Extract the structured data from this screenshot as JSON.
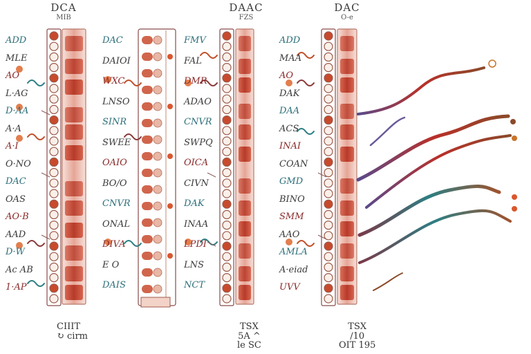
{
  "headers": [
    {
      "title": "DCA",
      "sub": "MIB"
    },
    {
      "title": "DAAC",
      "sub": "FZS"
    },
    {
      "title": "DAC",
      "sub": "O-e"
    }
  ],
  "panel1_labels": [
    "ADD",
    "MLE",
    "AO",
    "L·AG",
    "D·AA",
    "A·A",
    "A·I",
    "O·NO",
    "DAC",
    "OAS",
    "AO·B",
    "AAD",
    "D·W",
    "Ac AB",
    "1·AP"
  ],
  "panel2_labels": [
    "DAC",
    "DAIOI",
    "WXC",
    "LNSO",
    "SINR",
    "SWEE",
    "OAIO",
    "BO/O",
    "CNVR",
    "ONAL",
    "DIVA",
    "E O",
    "DAIS"
  ],
  "panel3_labels": [
    "FMV",
    "FAL",
    "DMR",
    "ADAO",
    "CNVR",
    "SWPQ",
    "OICA",
    "CIVN",
    "DAK",
    "INAA",
    "LPDI",
    "LNS",
    "NCT"
  ],
  "panel4_labels": [
    "ADD",
    "MAA",
    "AO",
    "DAK",
    "DAA",
    "ACS",
    "INAI",
    "COAN",
    "GMD",
    "BINO",
    "SMM",
    "AAO",
    "AMLA",
    "A·eiad",
    "UVV"
  ],
  "footers": [
    {
      "lines": [
        "CIIIT",
        "↻ cirm"
      ]
    },
    {
      "lines": [
        "TSX",
        "5A ^",
        "le SC"
      ]
    },
    {
      "lines": [
        "TSX",
        "/10",
        "OIT 195"
      ]
    }
  ],
  "colors": {
    "gel_red": "#c8412c",
    "gel_light": "#f4d4cb",
    "bead_red": "#c84a2d",
    "bead_pale": "#e8b7a6",
    "teal": "#2d7f83",
    "purple": "#5a4a8a",
    "bracket": "#8a4a4a"
  }
}
